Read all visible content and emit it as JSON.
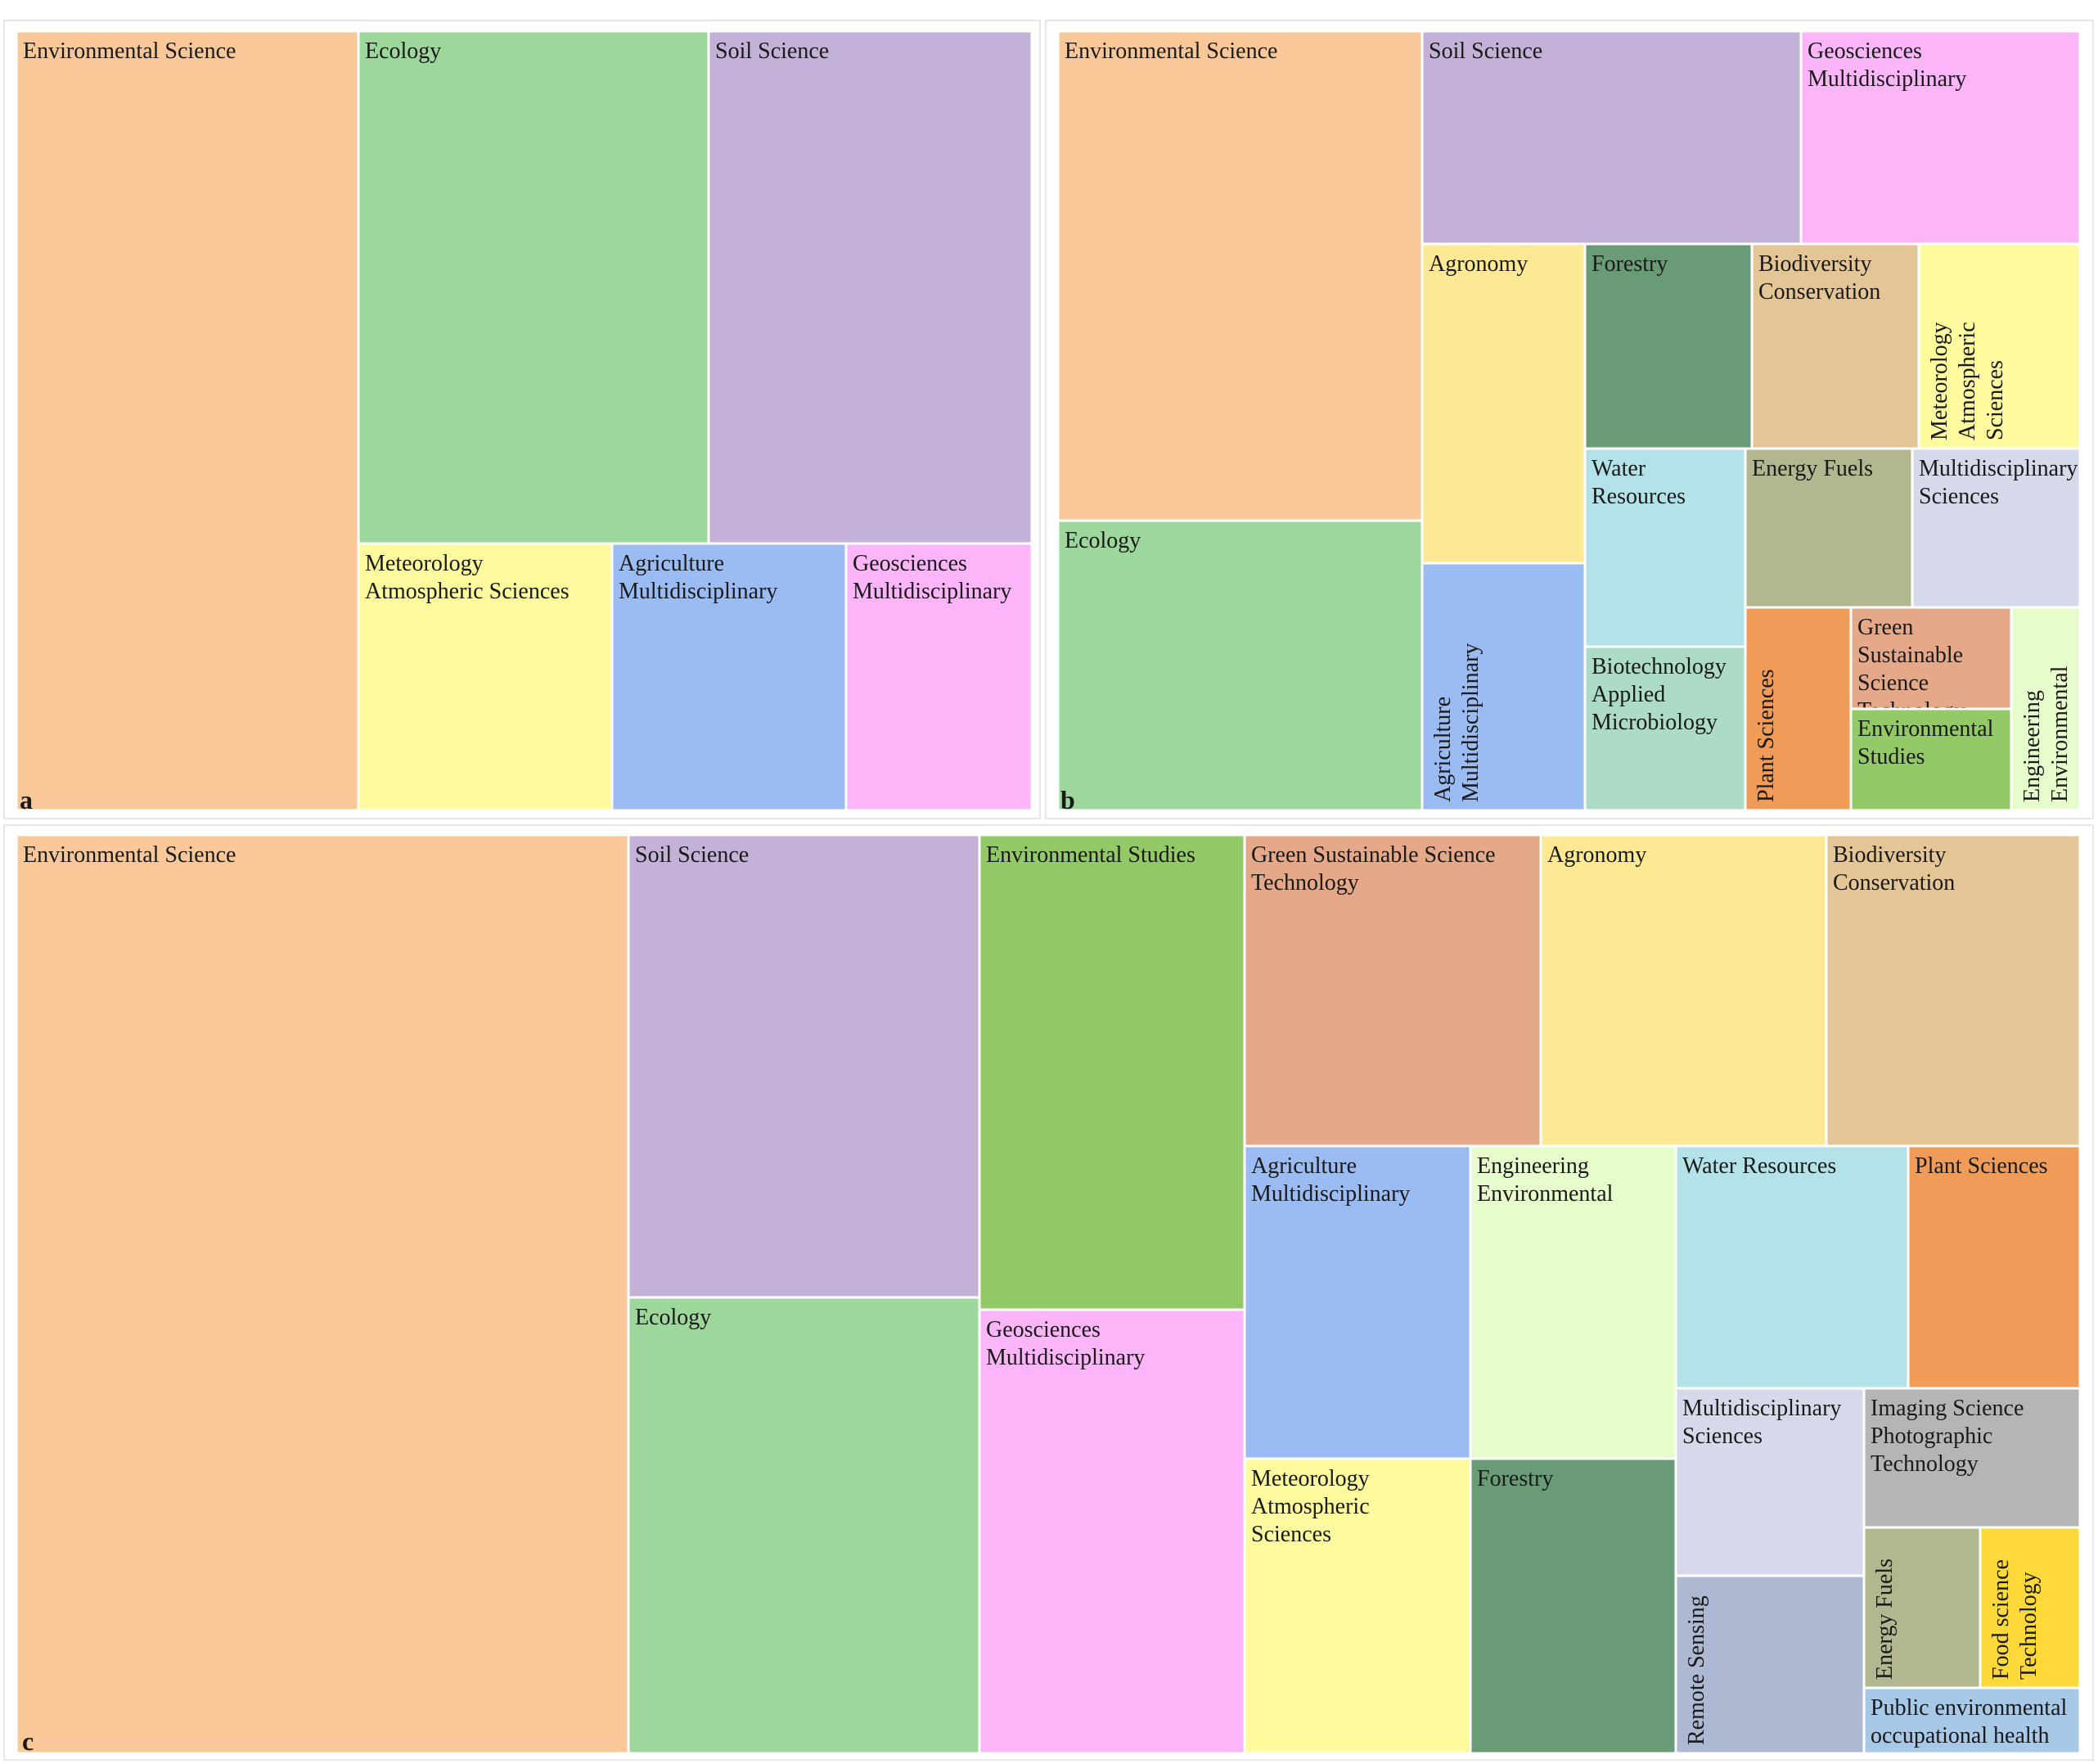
{
  "chart_data": [
    {
      "type": "treemap",
      "panel_label": "a",
      "tiles": [
        {
          "name": "Environmental Science",
          "lines": [
            "Environmental Science"
          ],
          "color": "#FAC898"
        },
        {
          "name": "Ecology",
          "lines": [
            "Ecology"
          ],
          "color": "#9DD79B"
        },
        {
          "name": "Soil Science",
          "lines": [
            "Soil Science"
          ],
          "color": "#C3B1D7"
        },
        {
          "name": "Meteorology Atmospheric Sciences",
          "lines": [
            "Meteorology",
            "Atmospheric Sciences"
          ],
          "color": "#FDFB9E"
        },
        {
          "name": "Agriculture Multidisciplinary",
          "lines": [
            "Agriculture",
            "Multidisciplinary"
          ],
          "color": "#9BBBF3"
        },
        {
          "name": "Geosciences Multidisciplinary",
          "lines": [
            "Geosciences",
            "Multidisciplinary"
          ],
          "color": "#FBB5F8"
        }
      ]
    },
    {
      "type": "treemap",
      "panel_label": "b",
      "tiles": [
        {
          "name": "Environmental Science",
          "lines": [
            "Environmental Science"
          ],
          "color": "#FAC898"
        },
        {
          "name": "Soil Science",
          "lines": [
            "Soil Science"
          ],
          "color": "#C3B1D7"
        },
        {
          "name": "Geosciences Multidisciplinary",
          "lines": [
            "Geosciences",
            "Multidisciplinary"
          ],
          "color": "#FBB5F8"
        },
        {
          "name": "Ecology",
          "lines": [
            "Ecology"
          ],
          "color": "#9DD79B"
        },
        {
          "name": "Agronomy",
          "lines": [
            "Agronomy"
          ],
          "color": "#FDE993"
        },
        {
          "name": "Forestry",
          "lines": [
            "Forestry"
          ],
          "color": "#6A9B77"
        },
        {
          "name": "Biodiversity Conservation",
          "lines": [
            "Biodiversity",
            "Conservation"
          ],
          "color": "#E4C595"
        },
        {
          "name": "Meteorology Atmospheric Sciences",
          "lines": [
            "Meteorology",
            "Atmospheric",
            "Sciences"
          ],
          "color": "#FDFB9E"
        },
        {
          "name": "Agriculture Multidisciplinary",
          "lines": [
            "Agriculture",
            "Multidisciplinary"
          ],
          "color": "#9BBBF3"
        },
        {
          "name": "Water Resources",
          "lines": [
            "Water",
            "Resources"
          ],
          "color": "#B3E3E9"
        },
        {
          "name": "Energy Fuels",
          "lines": [
            "Energy Fuels"
          ],
          "color": "#B2B78F"
        },
        {
          "name": "Multidisciplinary Sciences",
          "lines": [
            "Multidisciplinary",
            "Sciences"
          ],
          "color": "#D5D9EA"
        },
        {
          "name": "Biotechnology Applied Microbiology",
          "lines": [
            "Biotechnology",
            "Applied",
            "Microbiology"
          ],
          "color": "#ACDCC6"
        },
        {
          "name": "Plant Sciences",
          "lines": [
            "Plant Sciences"
          ],
          "color": "#F09C58"
        },
        {
          "name": "Green Sustainable Science Technology",
          "lines": [
            "Green",
            "Sustainable",
            "Science",
            "Technology"
          ],
          "color": "#E5A889"
        },
        {
          "name": "Environmental Studies",
          "lines": [
            "Environmental",
            "Studies"
          ],
          "color": "#94C968"
        },
        {
          "name": "Engineering Environmental",
          "lines": [
            "Engineering",
            "Environmental"
          ],
          "color": "#E6FCCB"
        }
      ]
    },
    {
      "type": "treemap",
      "panel_label": "c",
      "tiles": [
        {
          "name": "Environmental Science",
          "lines": [
            "Environmental Science"
          ],
          "color": "#FAC898"
        },
        {
          "name": "Soil Science",
          "lines": [
            "Soil Science"
          ],
          "color": "#C3B1D7"
        },
        {
          "name": "Ecology",
          "lines": [
            "Ecology"
          ],
          "color": "#9DD79B"
        },
        {
          "name": "Environmental Studies",
          "lines": [
            "Environmental Studies"
          ],
          "color": "#94C968"
        },
        {
          "name": "Geosciences Multidisciplinary",
          "lines": [
            "Geosciences",
            "Multidisciplinary"
          ],
          "color": "#FBB5F8"
        },
        {
          "name": "Green Sustainable Science Technology",
          "lines": [
            "Green  Sustainable Science",
            "Technology"
          ],
          "color": "#E5A889"
        },
        {
          "name": "Agronomy",
          "lines": [
            "Agronomy"
          ],
          "color": "#FDE993"
        },
        {
          "name": "Biodiversity Conservation",
          "lines": [
            "Biodiversity",
            "Conservation"
          ],
          "color": "#E4C595"
        },
        {
          "name": "Agriculture Multidisciplinary",
          "lines": [
            "Agriculture",
            "Multidisciplinary"
          ],
          "color": "#9BBBF3"
        },
        {
          "name": "Engineering Environmental",
          "lines": [
            "Engineering",
            "Environmental"
          ],
          "color": "#E6FCCB"
        },
        {
          "name": "Water Resources",
          "lines": [
            "Water Resources"
          ],
          "color": "#B3E3E9"
        },
        {
          "name": "Plant Sciences",
          "lines": [
            "Plant Sciences"
          ],
          "color": "#F09C58"
        },
        {
          "name": "Meteorology Atmospheric Sciences",
          "lines": [
            "Meteorology",
            "Atmospheric",
            "Sciences"
          ],
          "color": "#FDFB9E"
        },
        {
          "name": "Forestry",
          "lines": [
            "Forestry"
          ],
          "color": "#6A9B77"
        },
        {
          "name": "Multidisciplinary Sciences",
          "lines": [
            "Multidisciplinary",
            "Sciences"
          ],
          "color": "#D5D9EA"
        },
        {
          "name": "Imaging Science Photographic Technology",
          "lines": [
            "Imaging Science",
            "Photographic",
            "Technology"
          ],
          "color": "#B5B5B5"
        },
        {
          "name": "Remote Sensing",
          "lines": [
            "Remote Sensing"
          ],
          "color": "#ADB8D3"
        },
        {
          "name": "Energy Fuels",
          "lines": [
            "Energy Fuels"
          ],
          "color": "#B2B78F"
        },
        {
          "name": "Food science Technology",
          "lines": [
            "Food science",
            "Technology"
          ],
          "color": "#FFD93A"
        },
        {
          "name": "Public environmental occupational health",
          "lines": [
            "Public environmental",
            "occupational health"
          ],
          "color": "#A8C8E8"
        }
      ]
    }
  ]
}
